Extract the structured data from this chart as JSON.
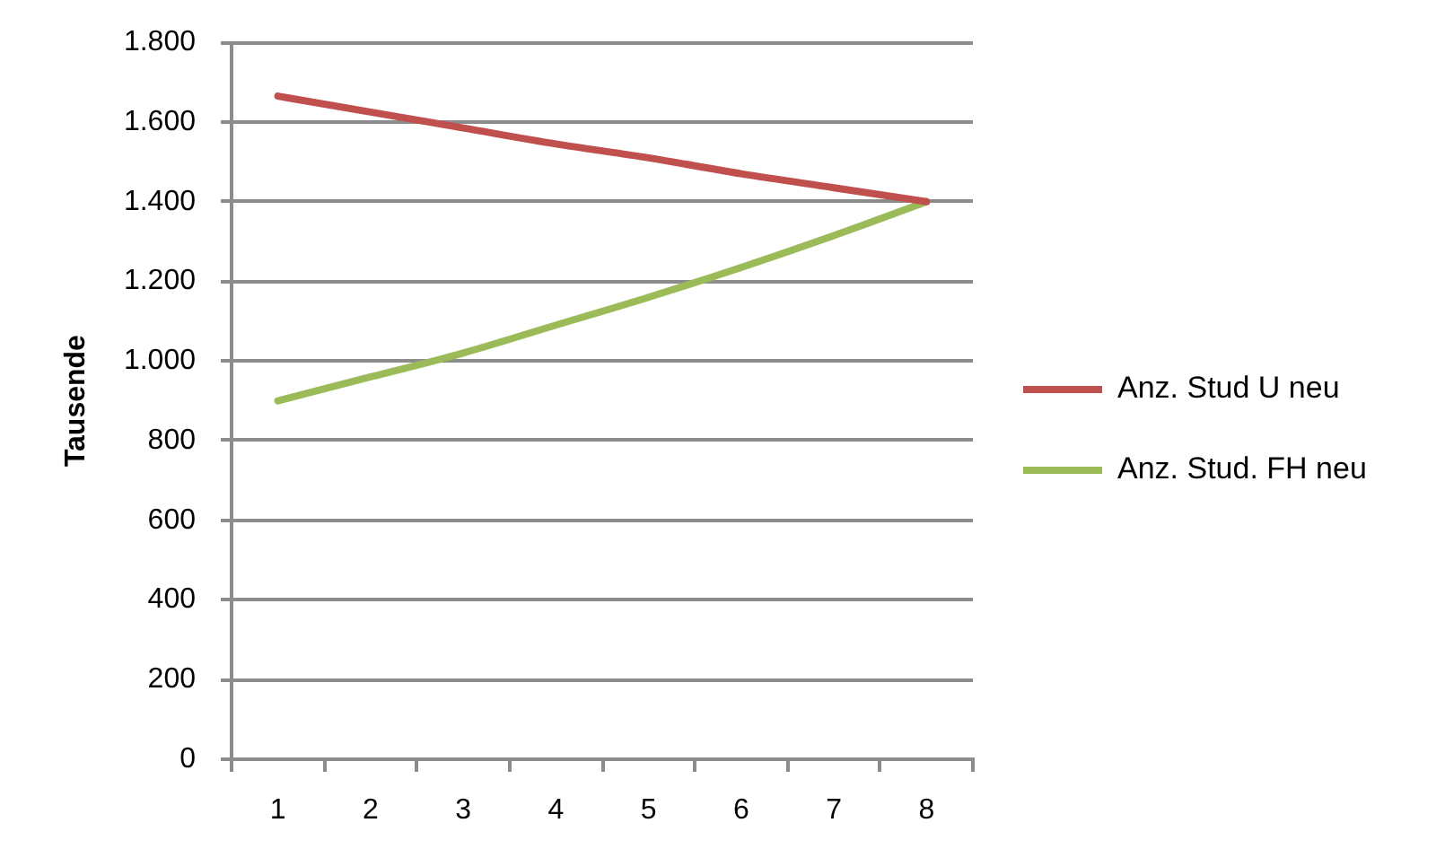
{
  "chart_data": {
    "type": "line",
    "ylabel": "Tausende",
    "categories": [
      "1",
      "2",
      "3",
      "4",
      "5",
      "6",
      "7",
      "8"
    ],
    "series": [
      {
        "name": "Anz. Stud U neu",
        "color": "#c0504d",
        "values": [
          1665,
          1625,
          1585,
          1545,
          1510,
          1470,
          1435,
          1400
        ]
      },
      {
        "name": "Anz. Stud. FH neu",
        "color": "#9bbb59",
        "values": [
          900,
          960,
          1020,
          1090,
          1160,
          1235,
          1315,
          1400
        ]
      }
    ],
    "ylim": [
      0,
      1800
    ],
    "yticks": [
      0,
      200,
      400,
      600,
      800,
      {
        "value": 1000,
        "label": "1.000"
      },
      {
        "value": 1200,
        "label": "1.200"
      },
      {
        "value": 1400,
        "label": "1.400"
      },
      {
        "value": 1600,
        "label": "1.600"
      },
      {
        "value": 1800,
        "label": "1.800"
      }
    ],
    "grid": "y",
    "legend": "right",
    "marker": "none",
    "line_style": "solid"
  }
}
